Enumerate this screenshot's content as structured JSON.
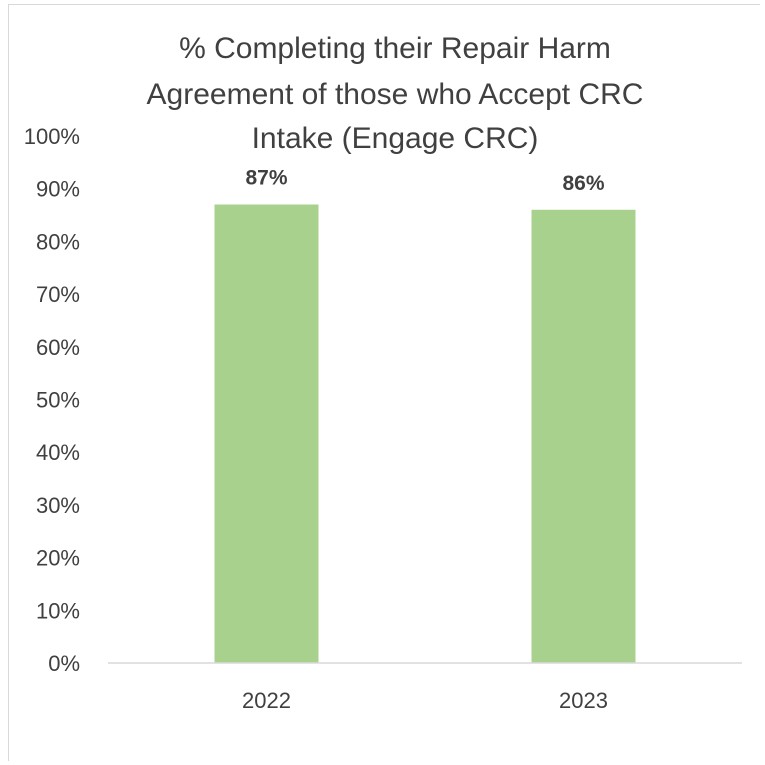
{
  "chart_data": {
    "type": "bar",
    "title": "% Completing their Repair Harm Agreement of those who Accept CRC Intake (Engage CRC)",
    "title_lines": [
      "% Completing their Repair Harm",
      "Agreement of those who Accept CRC",
      "Intake (Engage CRC)"
    ],
    "categories": [
      "2022",
      "2023"
    ],
    "values": [
      87,
      86
    ],
    "data_labels": [
      "87%",
      "86%"
    ],
    "xlabel": "",
    "ylabel": "",
    "ylim": [
      0,
      100
    ],
    "y_ticks": [
      0,
      10,
      20,
      30,
      40,
      50,
      60,
      70,
      80,
      90,
      100
    ],
    "y_tick_labels": [
      "0%",
      "10%",
      "20%",
      "30%",
      "40%",
      "50%",
      "60%",
      "70%",
      "80%",
      "90%",
      "100%"
    ],
    "grid": false,
    "legend": "none",
    "bar_color": "#a9d18e",
    "text_color": "#404040",
    "axis_color": "#d9d9d9"
  }
}
